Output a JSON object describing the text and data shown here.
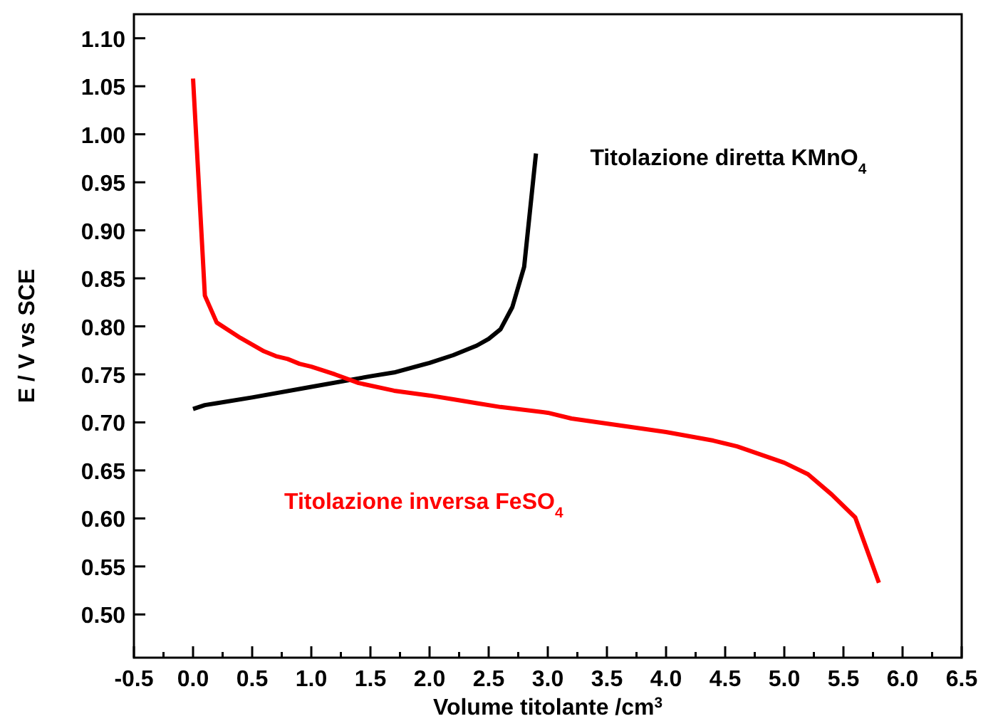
{
  "chart_data": {
    "type": "line",
    "xlabel": "Volume titolante /cm$^{3}$",
    "ylabel": "E / V vs SCE",
    "xlim": [
      -0.5,
      6.5
    ],
    "ylim": [
      0.455,
      1.125
    ],
    "xticks": [
      {
        "value": -0.5,
        "label": "-0.5"
      },
      {
        "value": -0.25,
        "label": null
      },
      {
        "value": 0,
        "label": "0.0"
      },
      {
        "value": 0.25,
        "label": null
      },
      {
        "value": 0.5,
        "label": "0.5"
      },
      {
        "value": 0.75,
        "label": null
      },
      {
        "value": 1,
        "label": "1.0"
      },
      {
        "value": 1.25,
        "label": null
      },
      {
        "value": 1.5,
        "label": "1.5"
      },
      {
        "value": 1.75,
        "label": null
      },
      {
        "value": 2,
        "label": "2.0"
      },
      {
        "value": 2.25,
        "label": null
      },
      {
        "value": 2.5,
        "label": "2.5"
      },
      {
        "value": 2.75,
        "label": null
      },
      {
        "value": 3,
        "label": "3.0"
      },
      {
        "value": 3.25,
        "label": null
      },
      {
        "value": 3.5,
        "label": "3.5"
      },
      {
        "value": 3.75,
        "label": null
      },
      {
        "value": 4,
        "label": "4.0"
      },
      {
        "value": 4.25,
        "label": null
      },
      {
        "value": 4.5,
        "label": "4.5"
      },
      {
        "value": 4.75,
        "label": null
      },
      {
        "value": 5,
        "label": "5.0"
      },
      {
        "value": 5.25,
        "label": null
      },
      {
        "value": 5.5,
        "label": "5.5"
      },
      {
        "value": 5.75,
        "label": null
      },
      {
        "value": 6,
        "label": "6.0"
      },
      {
        "value": 6.25,
        "label": null
      },
      {
        "value": 6.5,
        "label": "6.5"
      }
    ],
    "yticks": [
      {
        "value": 0.5,
        "label": "0.50"
      },
      {
        "value": 0.55,
        "label": "0.55"
      },
      {
        "value": 0.6,
        "label": "0.60"
      },
      {
        "value": 0.65,
        "label": "0.65"
      },
      {
        "value": 0.7,
        "label": "0.70"
      },
      {
        "value": 0.75,
        "label": "0.75"
      },
      {
        "value": 0.8,
        "label": "0.80"
      },
      {
        "value": 0.85,
        "label": "0.85"
      },
      {
        "value": 0.9,
        "label": "0.90"
      },
      {
        "value": 0.95,
        "label": "0.95"
      },
      {
        "value": 1.0,
        "label": "1.00"
      },
      {
        "value": 1.05,
        "label": "1.05"
      },
      {
        "value": 1.1,
        "label": "1.10"
      }
    ],
    "grid": false,
    "marker": "none",
    "line_style": "solid",
    "series": [
      {
        "name": "Titolazione diretta KMnO$_{4}$",
        "color": "#000000",
        "x": [
          0,
          0.1,
          0.2,
          0.5,
          1.0,
          1.5,
          1.7,
          2.0,
          2.2,
          2.4,
          2.5,
          2.6,
          2.7,
          2.8,
          2.9
        ],
        "values": [
          0.714,
          0.718,
          0.72,
          0.726,
          0.737,
          0.748,
          0.752,
          0.762,
          0.77,
          0.78,
          0.787,
          0.797,
          0.82,
          0.862,
          0.98
        ]
      },
      {
        "name": "Titolazione inversa FeSO$_{4}$",
        "color": "#ff0000",
        "x": [
          0,
          0.1,
          0.2,
          0.4,
          0.6,
          0.7,
          0.8,
          0.9,
          1.0,
          1.2,
          1.4,
          1.7,
          2.0,
          2.2,
          2.4,
          2.6,
          3.0,
          3.2,
          3.6,
          4.0,
          4.4,
          4.6,
          5.0,
          5.2,
          5.4,
          5.6,
          5.8
        ],
        "values": [
          1.058,
          0.832,
          0.804,
          0.788,
          0.774,
          0.769,
          0.766,
          0.761,
          0.758,
          0.75,
          0.741,
          0.733,
          0.728,
          0.724,
          0.72,
          0.716,
          0.71,
          0.704,
          0.697,
          0.69,
          0.681,
          0.675,
          0.658,
          0.646,
          0.625,
          0.601,
          0.533
        ]
      }
    ]
  }
}
